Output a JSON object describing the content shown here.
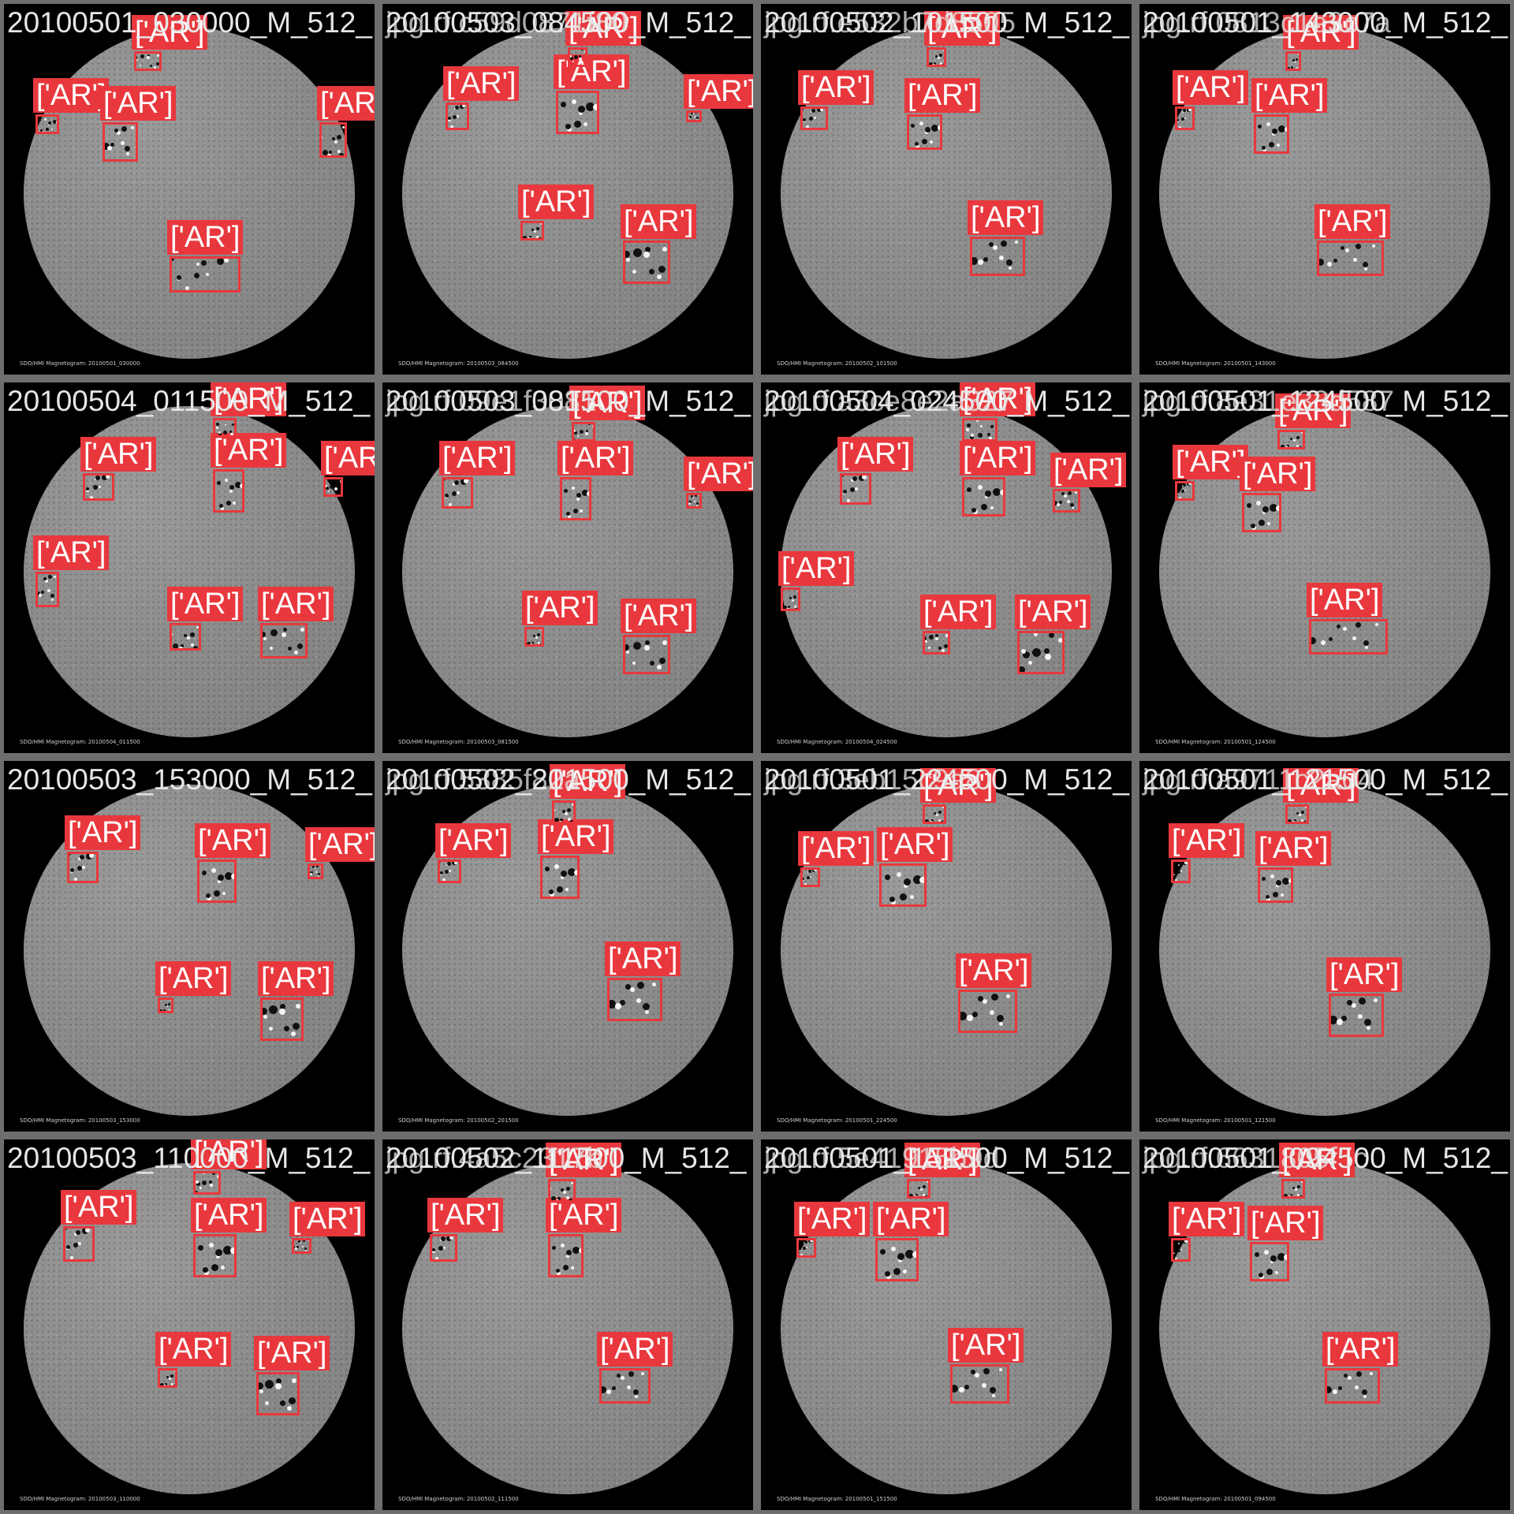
{
  "colors": {
    "box": "#e8383d",
    "label_text": "#ffffff",
    "filename_text": "#e6e6e6",
    "tile_bg": "#000000",
    "gap": "#6e6e6e"
  },
  "tiles": [
    {
      "filename": "20100501_030000_M_512_",
      "overlay": "",
      "caption": "SDO/HMI Magnetogram: 20100501_030000",
      "boxes": [
        {
          "label": "['AR']",
          "type": "AR"
        },
        {
          "label": "['AR']",
          "type": "AR"
        },
        {
          "label": "['AR']",
          "type": "AR"
        },
        {
          "label": "['AR']",
          "type": "AR"
        },
        {
          "label": "['AR']",
          "type": "AR"
        }
      ]
    },
    {
      "filename": "20100503_084500_M_512_",
      "overlay": "jpg.rf.c59d0871f80",
      "caption": "SDO/HMI Magnetogram: 20100503_084500",
      "boxes": [
        {
          "label": "['AR']",
          "type": "AR"
        },
        {
          "label": "['AR']",
          "type": "AR"
        },
        {
          "label": "['AR']",
          "type": "AR"
        },
        {
          "label": "['AR']",
          "type": "AR"
        },
        {
          "label": "['AR']",
          "type": "AR"
        },
        {
          "label": "['AR']",
          "type": "AR"
        }
      ]
    },
    {
      "filename": "20100502_101500_M_512_",
      "overlay": "jpg.rf.e532b7d8505",
      "caption": "SDO/HMI Magnetogram: 20100502_101500",
      "boxes": [
        {
          "label": "['AR']",
          "type": "AR"
        },
        {
          "label": "['AR']",
          "type": "AR"
        },
        {
          "label": "['AR']",
          "type": "AR"
        },
        {
          "label": "['AR']",
          "type": "AR"
        }
      ]
    },
    {
      "filename": "20100501_143000_M_512_",
      "overlay": "jpg.rf.0813c1e3c7a",
      "caption": "SDO/HMI Magnetogram: 20100501_143000",
      "boxes": [
        {
          "label": "['AR']",
          "type": "AR"
        },
        {
          "label": "['AR']",
          "type": "AR"
        },
        {
          "label": "['AR']",
          "type": "AR"
        },
        {
          "label": "['AR']",
          "type": "AR"
        }
      ]
    },
    {
      "filename": "20100504_011500_M_512_",
      "overlay": "",
      "caption": "SDO/HMI Magnetogram: 20100504_011500",
      "boxes": [
        {
          "label": "['AR']",
          "type": "AR"
        },
        {
          "label": "['AR']",
          "type": "AR"
        },
        {
          "label": "['AR']",
          "type": "AR"
        },
        {
          "label": "['AR']",
          "type": "AR"
        },
        {
          "label": "['AR']",
          "type": "AR"
        },
        {
          "label": "['AR']",
          "type": "AR"
        },
        {
          "label": "['AR']",
          "type": "AR"
        }
      ]
    },
    {
      "filename": "20100503_081500_M_512_",
      "overlay": "jpg.rf.09e1f3081",
      "caption": "SDO/HMI Magnetogram: 20100503_081500",
      "boxes": [
        {
          "label": "['AR']",
          "type": "AR"
        },
        {
          "label": "['AR']",
          "type": "AR"
        },
        {
          "label": "['AR']",
          "type": "AR"
        },
        {
          "label": "['AR']",
          "type": "AR"
        },
        {
          "label": "['AR']",
          "type": "AR"
        },
        {
          "label": "['AR']",
          "type": "AR"
        }
      ]
    },
    {
      "filename": "20100504_024500_M_512_",
      "overlay": "jpg.rf.a3ce8e2a327",
      "caption": "SDO/HMI Magnetogram: 20100504_024500",
      "boxes": [
        {
          "label": "['AR']",
          "type": "AR"
        },
        {
          "label": "['AR']",
          "type": "AR"
        },
        {
          "label": "['AR']",
          "type": "AR"
        },
        {
          "label": "['AR']",
          "type": "AR"
        },
        {
          "label": "['AR']",
          "type": "AR"
        },
        {
          "label": "['AR']",
          "type": "AR"
        },
        {
          "label": "['AR']",
          "type": "AR"
        }
      ]
    },
    {
      "filename": "20100501_124500_M_512_",
      "overlay": "jpg.rf.8e31e33d587",
      "caption": "SDO/HMI Magnetogram: 20100501_124500",
      "boxes": [
        {
          "label": "['AR']",
          "type": "AR"
        },
        {
          "label": "['AR']",
          "type": "AR"
        },
        {
          "label": "['AR']",
          "type": "AR"
        },
        {
          "label": "['AR']",
          "type": "AR"
        }
      ]
    },
    {
      "filename": "20100503_153000_M_512_",
      "overlay": "",
      "caption": "SDO/HMI Magnetogram: 20100503_153000",
      "boxes": [
        {
          "label": "['AR']",
          "type": "AR"
        },
        {
          "label": "['AR']",
          "type": "AR"
        },
        {
          "label": "['AR']",
          "type": "AR"
        },
        {
          "label": "['AR']",
          "type": "AR"
        },
        {
          "label": "['AR']",
          "type": "AR"
        }
      ]
    },
    {
      "filename": "20100502_201500_M_512_",
      "overlay": "jpg.rf.5385f82a",
      "caption": "SDO/HMI Magnetogram: 20100502_201500",
      "boxes": [
        {
          "label": "['AR']",
          "type": "AR"
        },
        {
          "label": "['AR']",
          "type": "AR"
        },
        {
          "label": "['AR']",
          "type": "AR"
        },
        {
          "label": "['AR']",
          "type": "AR"
        }
      ]
    },
    {
      "filename": "20100501_224500_M_512_",
      "overlay": "jpg.rf.3eb15c9a8",
      "caption": "SDO/HMI Magnetogram: 20100501_224500",
      "boxes": [
        {
          "label": "['AR']",
          "type": "AR"
        },
        {
          "label": "['AR']",
          "type": "AR"
        },
        {
          "label": "['AR']",
          "type": "AR"
        },
        {
          "label": "['AR']",
          "type": "AR"
        }
      ]
    },
    {
      "filename": "20100501_121500_M_512_",
      "overlay": "jpg.rf.a9711c2a04",
      "caption": "SDO/HMI Magnetogram: 20100501_121500",
      "boxes": [
        {
          "label": "['AR']",
          "type": "AR"
        },
        {
          "label": "['AR']",
          "type": "AR"
        },
        {
          "label": "['AR']",
          "type": "AR"
        },
        {
          "label": "['AR']",
          "type": "AR"
        }
      ]
    },
    {
      "filename": "20100503_110000_M_512_",
      "overlay": "",
      "caption": "SDO/HMI Magnetogram: 20100503_110000",
      "boxes": [
        {
          "label": "['AR']",
          "type": "AR"
        },
        {
          "label": "['AR']",
          "type": "AR"
        },
        {
          "label": "['AR']",
          "type": "AR"
        },
        {
          "label": "['AR']",
          "type": "AR"
        },
        {
          "label": "['AR']",
          "type": "AR"
        },
        {
          "label": "['AR']",
          "type": "AR"
        }
      ]
    },
    {
      "filename": "20100502_111500_M_512_",
      "overlay": "jpg.rf.4a5c2317b",
      "caption": "SDO/HMI Magnetogram: 20100502_111500",
      "boxes": [
        {
          "label": "['AR']",
          "type": "AR"
        },
        {
          "label": "['AR']",
          "type": "AR"
        },
        {
          "label": "['AR']",
          "type": "AR"
        },
        {
          "label": "['AR']",
          "type": "AR"
        }
      ]
    },
    {
      "filename": "20100501_151500_M_512_",
      "overlay": "jpg.rf.5e41915b9d",
      "caption": "SDO/HMI Magnetogram: 20100501_151500",
      "boxes": [
        {
          "label": "['AR']",
          "type": "AR"
        },
        {
          "label": "['AR']",
          "type": "AR"
        },
        {
          "label": "['AR']",
          "type": "AR"
        },
        {
          "label": "['AR']",
          "type": "AR"
        }
      ]
    },
    {
      "filename": "20100501_094500_M_512_",
      "overlay": "jpg.rf.6631805f5c",
      "caption": "SDO/HMI Magnetogram: 20100501_094500",
      "boxes": [
        {
          "label": "['AR']",
          "type": "AR"
        },
        {
          "label": "['AR']",
          "type": "AR"
        },
        {
          "label": "['AR']",
          "type": "AR"
        },
        {
          "label": "['AR']",
          "type": "AR"
        }
      ]
    }
  ]
}
